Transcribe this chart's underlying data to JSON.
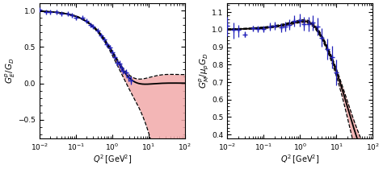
{
  "fig_width": 4.74,
  "fig_height": 2.1,
  "dpi": 100,
  "left_ylabel": "$G_E^p/G_D$",
  "right_ylabel": "$G_M^p/\\mu_p G_D$",
  "xlabel": "$Q^2\\,[\\mathrm{GeV}^2]$",
  "xlim": [
    0.01,
    100
  ],
  "left_ylim": [
    -0.75,
    1.1
  ],
  "right_ylim": [
    0.38,
    1.15
  ],
  "left_yticks": [
    1.0,
    0.5,
    0.0,
    -0.5
  ],
  "right_yticks": [
    1.1,
    1.0,
    0.9,
    0.8,
    0.7,
    0.6,
    0.5,
    0.4
  ],
  "band_color": "#f2aaaa",
  "band_alpha": 0.85,
  "line_color": "#000000",
  "dashed_color": "#000000",
  "data_color": "#2222bb",
  "background_color": "#ffffff"
}
